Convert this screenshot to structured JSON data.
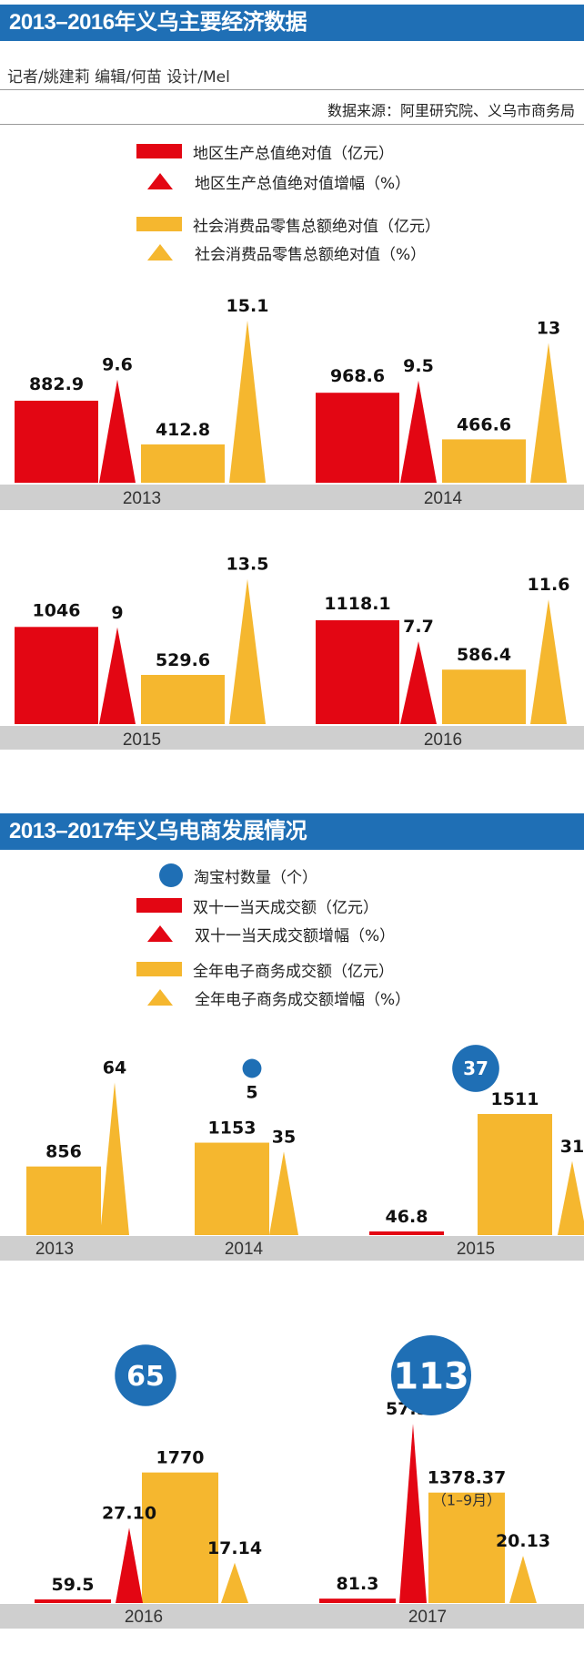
{
  "section1": {
    "title": "2013–2016年义乌主要经济数据",
    "credit": "记者/姚建莉  编辑/何苗  设计/Mel",
    "source": "数据来源：阿里研究院、义乌市商务局",
    "legend": [
      {
        "symbol": "bar-red",
        "label": "地区生产总值绝对值（亿元）"
      },
      {
        "symbol": "tri-red",
        "label": "地区生产总值绝对值增幅（%）"
      },
      {
        "symbol": "bar-yellow",
        "label": "社会消费品零售总额绝对值（亿元）"
      },
      {
        "symbol": "tri-yellow",
        "label": "社会消费品零售总额绝对值（%）"
      }
    ]
  },
  "section2": {
    "title": "2013–2017年义乌电商发展情况",
    "legend": [
      {
        "symbol": "circle-blue",
        "label": "淘宝村数量（个）"
      },
      {
        "symbol": "bar-red",
        "label": "双十一当天成交额（亿元）"
      },
      {
        "symbol": "tri-red",
        "label": "双十一当天成交额增幅（%）"
      },
      {
        "symbol": "bar-yellow",
        "label": "全年电子商务成交额（亿元）"
      },
      {
        "symbol": "tri-yellow",
        "label": "全年电子商务成交额增幅（%）"
      }
    ]
  },
  "colors": {
    "red": "#e30613",
    "yellow": "#f5b72f",
    "blue": "#1f6fb5",
    "axis": "#cfcfcf"
  },
  "chart_data": [
    {
      "type": "bar",
      "categories": [
        "2013",
        "2014",
        "2015",
        "2016"
      ],
      "series": [
        {
          "name": "地区生产总值绝对值（亿元）",
          "mark": "bar",
          "color": "#e30613",
          "values": [
            882.9,
            968.6,
            1046,
            1118.1
          ],
          "labels": [
            "882.9",
            "968.6",
            "1046",
            "1118.1"
          ]
        },
        {
          "name": "地区生产总值绝对值增幅（%）",
          "mark": "triangle",
          "color": "#e30613",
          "values": [
            9.6,
            9.5,
            9,
            7.7
          ],
          "labels": [
            "9.6",
            "9.5",
            "9",
            "7.7"
          ]
        },
        {
          "name": "社会消费品零售总额绝对值（亿元）",
          "mark": "bar",
          "color": "#f5b72f",
          "values": [
            412.8,
            466.6,
            529.6,
            586.4
          ],
          "labels": [
            "412.8",
            "466.6",
            "529.6",
            "586.4"
          ]
        },
        {
          "name": "社会消费品零售总额绝对值（%）",
          "mark": "triangle",
          "color": "#f5b72f",
          "values": [
            15.1,
            13,
            13.5,
            11.6
          ],
          "labels": [
            "15.1",
            "13",
            "13.5",
            "11.6"
          ]
        }
      ]
    },
    {
      "type": "bar",
      "categories": [
        "2013",
        "2014",
        "2015",
        "2016",
        "2017"
      ],
      "series": [
        {
          "name": "淘宝村数量（个）",
          "mark": "circle",
          "color": "#1f6fb5",
          "values": [
            null,
            5,
            37,
            65,
            113
          ],
          "labels": [
            null,
            "5",
            "37",
            "65",
            "113"
          ]
        },
        {
          "name": "双十一当天成交额（亿元）",
          "mark": "bar",
          "color": "#e30613",
          "values": [
            null,
            null,
            46.8,
            59.5,
            81.3
          ],
          "labels": [
            null,
            null,
            "46.8",
            "59.5",
            "81.3"
          ]
        },
        {
          "name": "双十一当天成交额增幅（%）",
          "mark": "triangle",
          "color": "#e30613",
          "values": [
            null,
            null,
            null,
            27.1,
            57.56
          ],
          "labels": [
            null,
            null,
            null,
            "27.10",
            "57.56"
          ]
        },
        {
          "name": "全年电子商务成交额（亿元）",
          "mark": "bar",
          "color": "#f5b72f",
          "values": [
            856,
            1153,
            1511,
            1770,
            1378.37
          ],
          "labels": [
            "856",
            "1153",
            "1511",
            "1770",
            "1378.37"
          ]
        },
        {
          "name": "全年电子商务成交额增幅（%）",
          "mark": "triangle",
          "color": "#f5b72f",
          "values": [
            64,
            35,
            31,
            17.14,
            20.13
          ],
          "labels": [
            "64",
            "35",
            "31",
            "17.14",
            "20.13"
          ]
        }
      ],
      "annotations": [
        {
          "category": "2017",
          "text": "（1–9月）"
        }
      ]
    }
  ]
}
